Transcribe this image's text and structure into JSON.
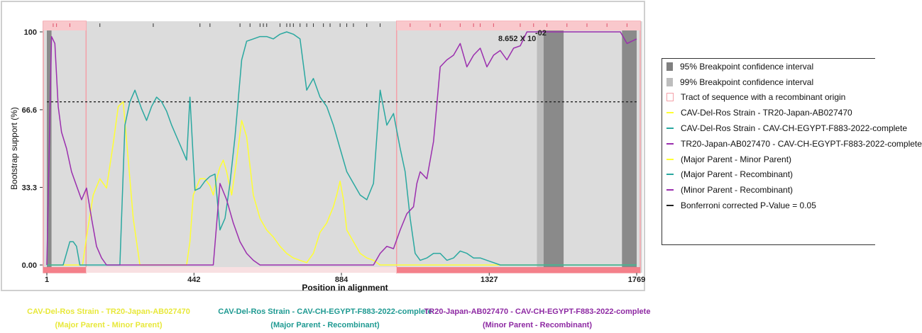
{
  "chart_data": {
    "type": "line",
    "ylabel": "Bootstrap support (%)",
    "xlabel": "Position in alignment",
    "x_ticks": [
      "1",
      "442",
      "884",
      "1327",
      "1769"
    ],
    "y_ticks": [
      "0.00",
      "33.3",
      "66.6",
      "100"
    ],
    "xlim": [
      1,
      1769
    ],
    "ylim": [
      0,
      100
    ],
    "threshold": 70,
    "p_value_label": "8.652 X 10",
    "p_value_exponent": "-02",
    "ci95": [
      [
        1,
        15
      ],
      [
        1490,
        1550
      ],
      [
        1725,
        1769
      ]
    ],
    "ci99": [
      [
        1470,
        1490
      ]
    ],
    "recombinant_tracts": [
      [
        1,
        108
      ],
      [
        1060,
        1769
      ]
    ],
    "series": [
      {
        "name": "CAV-Del-Ros Strain - TR20-Japan-AB027470",
        "color": "#ffff33",
        "x": [
          1,
          30,
          60,
          90,
          108,
          120,
          140,
          160,
          180,
          200,
          215,
          230,
          245,
          260,
          280,
          300,
          320,
          340,
          360,
          380,
          400,
          410,
          420,
          430,
          440,
          460,
          475,
          490,
          500,
          510,
          520,
          530,
          540,
          555,
          570,
          585,
          600,
          620,
          640,
          660,
          680,
          700,
          720,
          740,
          760,
          780,
          800,
          820,
          840,
          860,
          870,
          880,
          890,
          900,
          920,
          940,
          960,
          980,
          1000,
          1030,
          1060,
          1100,
          1200,
          1300,
          1400,
          1500,
          1600,
          1700,
          1769
        ],
        "y": [
          0,
          0,
          0,
          0,
          0,
          12,
          30,
          37,
          33,
          52,
          68,
          70,
          45,
          20,
          0,
          0,
          0,
          0,
          0,
          0,
          0,
          0,
          0,
          10,
          30,
          37,
          37,
          34,
          30,
          37,
          42,
          45,
          40,
          30,
          45,
          62,
          55,
          30,
          20,
          15,
          12,
          8,
          5,
          3,
          2,
          1,
          5,
          14,
          18,
          25,
          30,
          36,
          28,
          15,
          10,
          5,
          3,
          2,
          0,
          0,
          0,
          0,
          0,
          0,
          0,
          0,
          0,
          0,
          0
        ]
      },
      {
        "name": "CAV-Del-Ros Strain - CAV-CH-EGYPT-F883-2022-complete",
        "color": "#2aa8a0",
        "x": [
          1,
          30,
          50,
          60,
          70,
          80,
          90,
          100,
          110,
          130,
          150,
          170,
          190,
          210,
          220,
          235,
          250,
          265,
          285,
          300,
          315,
          330,
          345,
          360,
          375,
          390,
          405,
          420,
          430,
          445,
          460,
          475,
          490,
          505,
          520,
          535,
          550,
          565,
          585,
          600,
          620,
          640,
          660,
          680,
          700,
          720,
          740,
          760,
          780,
          800,
          820,
          840,
          860,
          880,
          900,
          920,
          940,
          960,
          980,
          1000,
          1020,
          1040,
          1060,
          1075,
          1090,
          1105,
          1120,
          1140,
          1160,
          1180,
          1200,
          1220,
          1240,
          1260,
          1280,
          1300,
          1320,
          1340,
          1360,
          1380,
          1400,
          1420,
          1440,
          1460,
          1480,
          1500,
          1550,
          1600,
          1650,
          1700,
          1769
        ],
        "y": [
          0,
          0,
          0,
          5,
          10,
          10,
          8,
          0,
          0,
          0,
          0,
          0,
          0,
          0,
          0,
          60,
          70,
          75,
          67,
          62,
          68,
          72,
          70,
          66,
          60,
          55,
          50,
          45,
          72,
          32,
          33,
          36,
          38,
          39,
          15,
          20,
          35,
          55,
          88,
          96,
          97,
          98,
          98,
          97,
          99,
          100,
          99,
          97,
          75,
          80,
          72,
          68,
          60,
          50,
          40,
          35,
          30,
          28,
          35,
          75,
          60,
          65,
          50,
          40,
          20,
          5,
          2,
          3,
          5,
          5,
          2,
          3,
          6,
          5,
          3,
          3,
          2,
          1,
          0,
          0,
          0,
          0,
          0,
          0,
          0,
          0,
          0,
          0,
          0,
          0,
          0
        ]
      },
      {
        "name": "TR20-Japan-AB027470 - CAV-CH-EGYPT-F883-2022-complete",
        "color": "#9b2fae",
        "x": [
          1,
          15,
          25,
          35,
          45,
          60,
          75,
          90,
          105,
          120,
          135,
          150,
          165,
          180,
          200,
          250,
          300,
          350,
          400,
          442,
          480,
          500,
          520,
          540,
          560,
          580,
          600,
          620,
          640,
          660,
          680,
          700,
          720,
          740,
          760,
          780,
          800,
          820,
          840,
          860,
          880,
          900,
          920,
          940,
          960,
          980,
          1000,
          1020,
          1040,
          1060,
          1080,
          1100,
          1110,
          1120,
          1140,
          1160,
          1180,
          1200,
          1220,
          1240,
          1260,
          1280,
          1300,
          1320,
          1340,
          1360,
          1380,
          1400,
          1420,
          1440,
          1460,
          1480,
          1500,
          1550,
          1600,
          1650,
          1700,
          1720,
          1740,
          1769
        ],
        "y": [
          0,
          98,
          95,
          68,
          57,
          50,
          40,
          34,
          28,
          33,
          20,
          8,
          3,
          0,
          0,
          0,
          0,
          0,
          0,
          0,
          0,
          0,
          35,
          28,
          18,
          10,
          5,
          2,
          0,
          0,
          0,
          0,
          0,
          0,
          0,
          0,
          0,
          0,
          0,
          0,
          0,
          0,
          0,
          0,
          0,
          0,
          5,
          8,
          7,
          15,
          22,
          25,
          35,
          40,
          37,
          53,
          85,
          88,
          90,
          95,
          85,
          90,
          93,
          85,
          90,
          92,
          88,
          93,
          94,
          100,
          100,
          100,
          100,
          100,
          100,
          100,
          100,
          100,
          95,
          97
        ]
      }
    ],
    "legend": [
      {
        "kind": "box",
        "color": "#808080",
        "label": "95% Breakpoint confidence interval"
      },
      {
        "kind": "box",
        "color": "#bdbdbd",
        "label": "99% Breakpoint confidence interval"
      },
      {
        "kind": "outline",
        "color": "#f4a0a8",
        "label": "Tract of sequence with a recombinant origin"
      },
      {
        "kind": "line",
        "color": "#ffff33",
        "label": "CAV-Del-Ros Strain - TR20-Japan-AB027470"
      },
      {
        "kind": "line",
        "color": "#2aa8a0",
        "label": "CAV-Del-Ros Strain - CAV-CH-EGYPT-F883-2022-complete"
      },
      {
        "kind": "line",
        "color": "#9b2fae",
        "label": "TR20-Japan-AB027470 - CAV-CH-EGYPT-F883-2022-complete"
      },
      {
        "kind": "line",
        "color": "#ffff33",
        "label": "(Major Parent - Minor Parent)"
      },
      {
        "kind": "line",
        "color": "#2aa8a0",
        "label": "(Major Parent - Recombinant)"
      },
      {
        "kind": "line",
        "color": "#9b2fae",
        "label": "(Minor Parent - Recombinant)"
      },
      {
        "kind": "dash",
        "color": "#222222",
        "label": "Bonferroni corrected P-Value = 0.05"
      }
    ],
    "bottom_labels": [
      {
        "line1": "CAV-Del-Ros Strain - TR20-Japan-AB027470",
        "line2": "(Major Parent - Minor Parent)",
        "color": "#e8e83a"
      },
      {
        "line1": "CAV-Del-Ros Strain - CAV-CH-EGYPT-F883-2022-complete",
        "line2": "(Major Parent - Recombinant)",
        "color": "#1f9a92"
      },
      {
        "line1": "TR20-Japan-AB027470 - CAV-CH-EGYPT-F883-2022-complete",
        "line2": "(Minor Parent - Recombinant)",
        "color": "#8e2aa3"
      }
    ]
  }
}
